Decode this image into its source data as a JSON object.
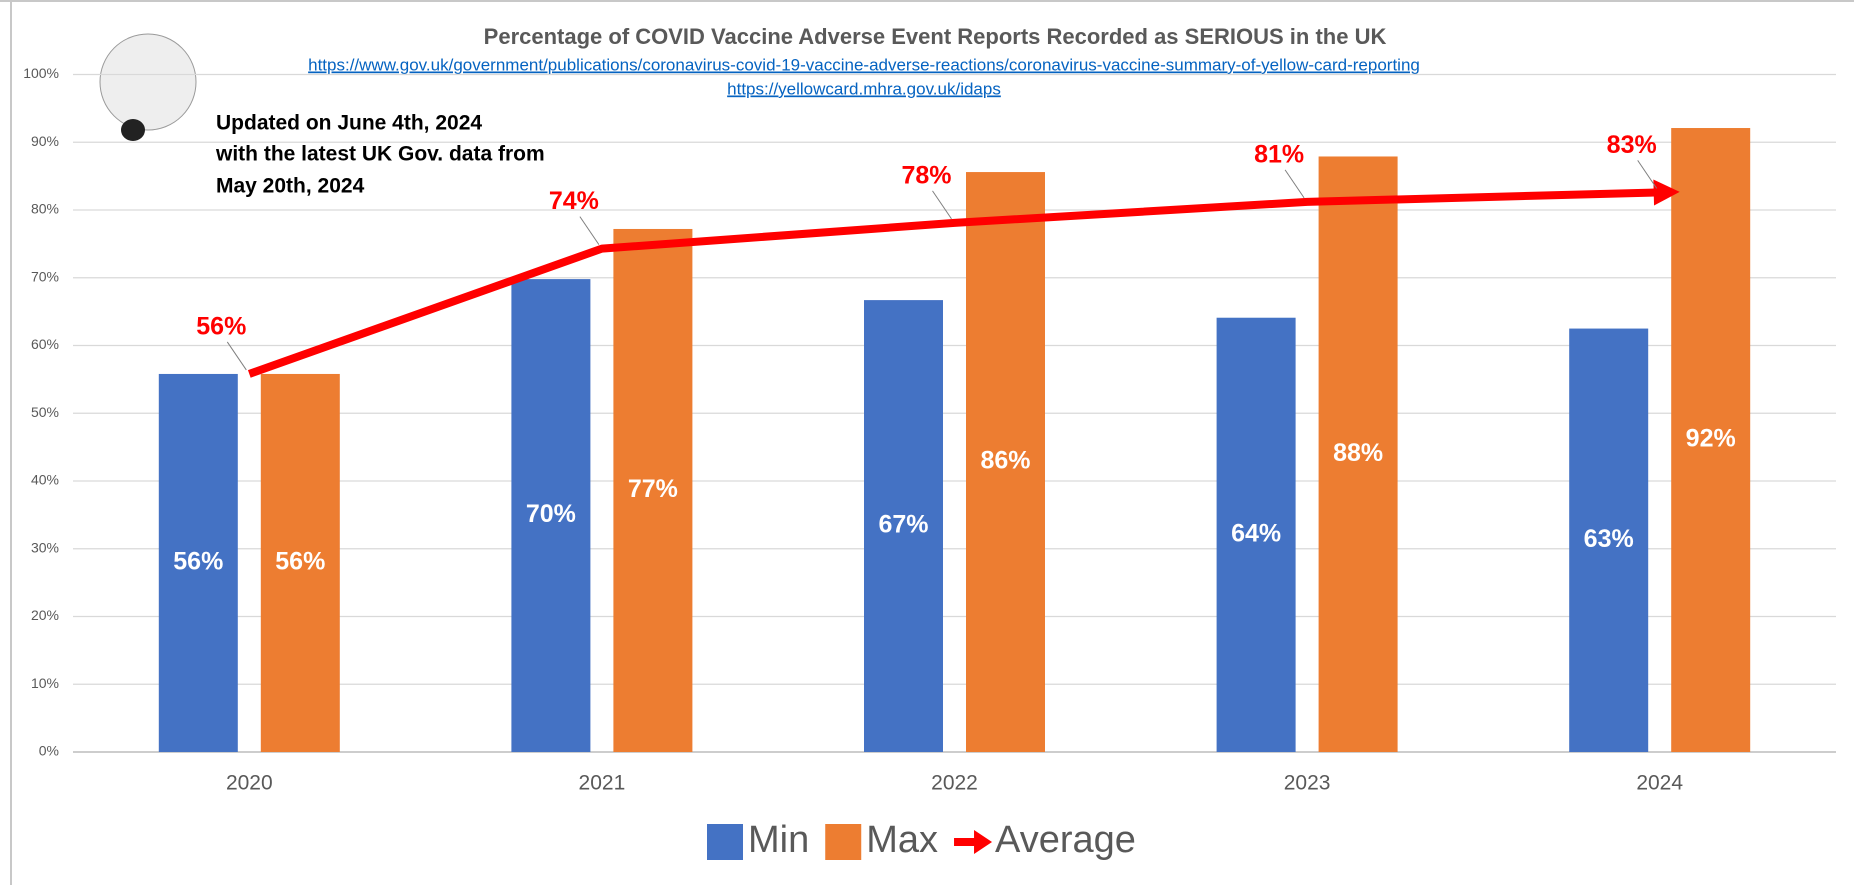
{
  "chart_data": {
    "type": "bar",
    "title": "Percentage of COVID Vaccine Adverse Event Reports Recorded as SERIOUS in the UK",
    "links": [
      "https://www.gov.uk/government/publications/coronavirus-covid-19-vaccine-adverse-reactions/coronavirus-vaccine-summary-of-yellow-card-reporting",
      "https://yellowcard.mhra.gov.uk/idaps"
    ],
    "annotation": [
      "Updated on June 4th, 2024",
      "with the latest UK Gov. data from",
      "May 20th, 2024"
    ],
    "categories": [
      "2020",
      "2021",
      "2022",
      "2023",
      "2024"
    ],
    "series": [
      {
        "name": "Min",
        "color": "#4472c4",
        "values": [
          55.8,
          69.8,
          66.7,
          64.1,
          62.5
        ],
        "value_labels": [
          "56%",
          "70%",
          "67%",
          "64%",
          "63%"
        ]
      },
      {
        "name": "Max",
        "color": "#ed7d31",
        "values": [
          55.8,
          77.2,
          85.6,
          87.9,
          92.1
        ],
        "value_labels": [
          "56%",
          "77%",
          "86%",
          "88%",
          "92%"
        ]
      },
      {
        "name": "Average",
        "type": "line",
        "color": "#ff0000",
        "values": [
          55.8,
          74.3,
          78.1,
          81.2,
          82.6
        ],
        "value_labels": [
          "56%",
          "74%",
          "78%",
          "81%",
          "83%"
        ]
      }
    ],
    "ylim": [
      0,
      100
    ],
    "yticks": [
      {
        "value": 0,
        "label": "0%"
      },
      {
        "value": 10,
        "label": "10%"
      },
      {
        "value": 20,
        "label": "20%"
      },
      {
        "value": 30,
        "label": "30%"
      },
      {
        "value": 40,
        "label": "40%"
      },
      {
        "value": 50,
        "label": "50%"
      },
      {
        "value": 60,
        "label": "60%"
      },
      {
        "value": 70,
        "label": "70%"
      },
      {
        "value": 80,
        "label": "80%"
      },
      {
        "value": 90,
        "label": "90%"
      },
      {
        "value": 100,
        "label": "100%"
      }
    ],
    "grid": true,
    "legend": "bottom"
  }
}
